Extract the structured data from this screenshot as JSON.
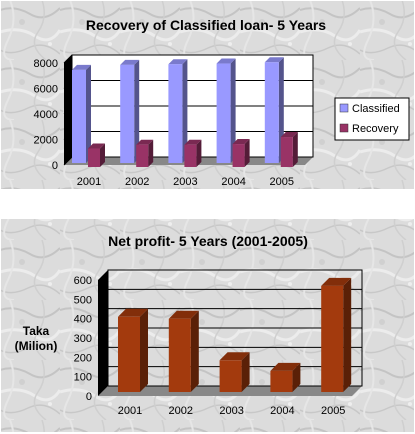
{
  "chart_data": [
    {
      "type": "bar",
      "title": "Recovery of Classified loan- 5 Years",
      "categories": [
        "2001",
        "2002",
        "2003",
        "2004",
        "2005"
      ],
      "series": [
        {
          "name": "Classified",
          "values": [
            7300,
            7700,
            7750,
            7800,
            7900
          ]
        },
        {
          "name": "Recovery",
          "values": [
            1450,
            1750,
            1750,
            1800,
            2350
          ]
        }
      ],
      "ylim": [
        0,
        8000
      ],
      "yticks": [
        "0",
        "2000",
        "4000",
        "6000",
        "8000"
      ],
      "legend_position": "right",
      "grid": true,
      "colors": {
        "Classified": "#9999ff",
        "Recovery": "#993366"
      },
      "background": "marble"
    },
    {
      "type": "bar",
      "title": "Net profit- 5 Years (2001-2005)",
      "categories": [
        "2001",
        "2002",
        "2003",
        "2004",
        "2005"
      ],
      "series": [
        {
          "values": [
            420,
            410,
            195,
            140,
            580
          ]
        }
      ],
      "ylabel": "Taka (Milion)",
      "ylim": [
        0,
        600
      ],
      "yticks": [
        "0",
        "100",
        "200",
        "300",
        "400",
        "500",
        "600"
      ],
      "grid": true,
      "colors": {
        "bar": "#a33a0d"
      },
      "background": "marble"
    }
  ]
}
